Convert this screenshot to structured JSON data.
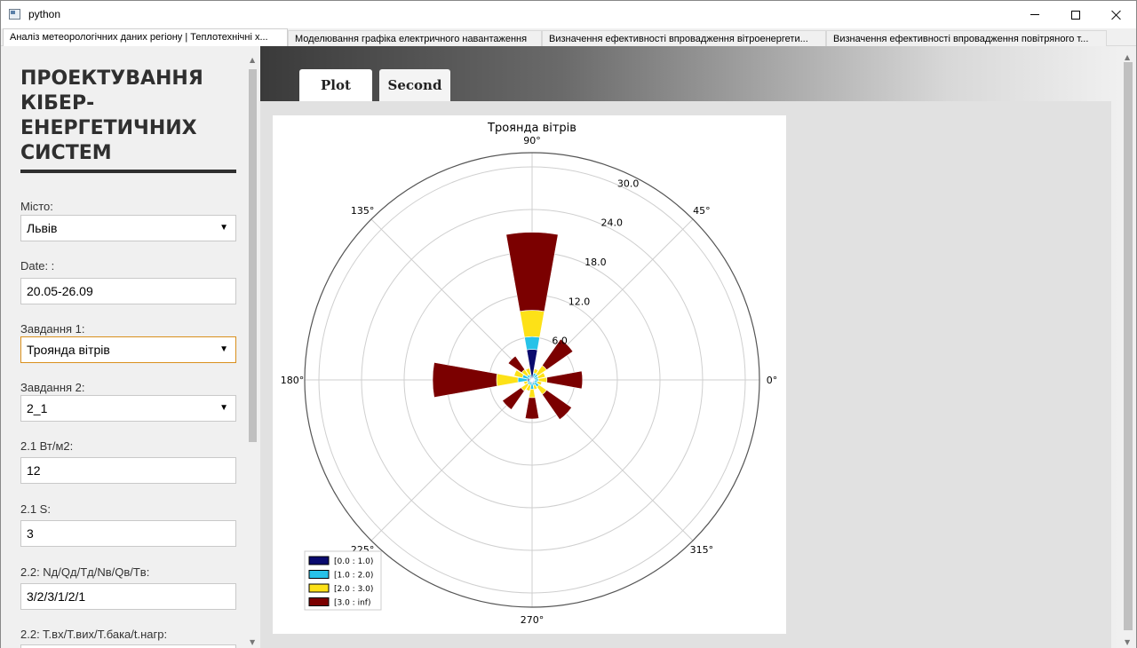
{
  "window": {
    "title": "python"
  },
  "tabs": [
    {
      "label": "Аналіз метеорологічних даних регіону | Теплотехнічні х...",
      "active": true
    },
    {
      "label": "Моделювання графіка електричного навантаження",
      "active": false
    },
    {
      "label": "Визначення ефективності впровадження вітроенергети...",
      "active": false
    },
    {
      "label": "Визначення ефективності впровадження повітряного т...",
      "active": false
    }
  ],
  "sidebar": {
    "title": "ПРОЕКТУВАННЯ КІБЕР-ЕНЕРГЕТИЧНИХ СИСТЕМ",
    "city_label": "Місто:",
    "city_value": "Львів",
    "date_label": "Date: :",
    "date_value": "20.05-26.09",
    "task1_label": "Завдання 1:",
    "task1_value": "Троянда вітрів",
    "task2_label": "Завдання 2:",
    "task2_value": "2_1",
    "p21w_label": "2.1 Вт/м2:",
    "p21w_value": "12",
    "p21s_label": "2.1 S:",
    "p21s_value": "3",
    "p22n_label": "2.2: Nд/Qд/Tд/Nв/Qв/Tв:",
    "p22n_value": "3/2/3/1/2/1",
    "p22t_label": "2.2: T.вх/T.вих/T.бака/t.нагр:"
  },
  "main_tabs": {
    "plot": "Plot",
    "second": "Second"
  },
  "chart_data": {
    "type": "windrose",
    "title": "Троянда вітрів",
    "angle_labels": [
      "0°",
      "45°",
      "90°",
      "135°",
      "180°",
      "225°",
      "270°",
      "315°"
    ],
    "radial_ticks": [
      6.0,
      12.0,
      18.0,
      24.0,
      30.0
    ],
    "radial_tick_labels": [
      "6.0",
      "12.0",
      "18.0",
      "24.0",
      "30.0"
    ],
    "rmax": 32,
    "grid": true,
    "legend_position": "bottom-left",
    "bins": [
      {
        "label": "[0.0 : 1.0)",
        "color": "#0a0a6e"
      },
      {
        "label": "[1.0 : 2.0)",
        "color": "#27c2e8"
      },
      {
        "label": "[2.0 : 3.0)",
        "color": "#fde117"
      },
      {
        "label": "[3.0 : inf)",
        "color": "#7b0000"
      }
    ],
    "directions": [
      0,
      22.5,
      45,
      67.5,
      90,
      112.5,
      135,
      157.5,
      180,
      202.5,
      225,
      247.5,
      270,
      292.5,
      315,
      337.5
    ],
    "stacked_values": [
      [
        0.3,
        0.6,
        1.2,
        5.0
      ],
      [
        0.3,
        0.6,
        1.0,
        0.0
      ],
      [
        0.3,
        0.7,
        1.5,
        4.5
      ],
      [
        0.4,
        0.6,
        0.6,
        0.0
      ],
      [
        4.3,
        1.8,
        3.7,
        11.0
      ],
      [
        0.5,
        0.3,
        0.9,
        0.0
      ],
      [
        0.4,
        0.5,
        0.9,
        2.3
      ],
      [
        0.4,
        1.0,
        1.2,
        0.0
      ],
      [
        0.7,
        1.3,
        3.0,
        9.0
      ],
      [
        0.3,
        0.4,
        0.5,
        0.0
      ],
      [
        0.3,
        0.5,
        1.1,
        3.2
      ],
      [
        0.3,
        0.5,
        0.8,
        0.0
      ],
      [
        0.5,
        0.8,
        1.2,
        3.0
      ],
      [
        0.3,
        0.5,
        0.6,
        0.0
      ],
      [
        0.4,
        0.8,
        1.3,
        4.3
      ],
      [
        0.3,
        0.5,
        0.6,
        0.0
      ]
    ]
  }
}
